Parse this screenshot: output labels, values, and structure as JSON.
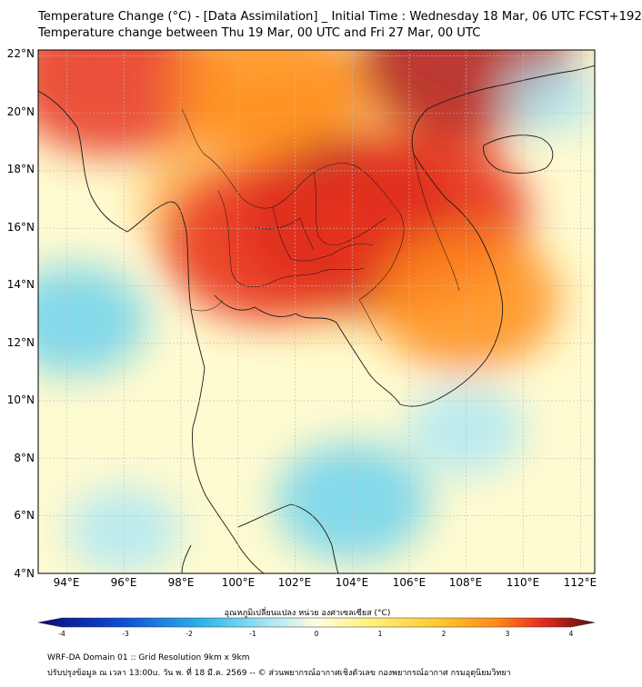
{
  "header": {
    "title_line1": "Temperature Change (°C) - [Data Assimilation] _ Initial Time : Wednesday 18 Mar, 06 UTC FCST+192",
    "title_line2": "Temperature change between Thu 19 Mar, 00 UTC and Fri 27 Mar, 00 UTC"
  },
  "map": {
    "lat_ticks": [
      "22°N",
      "20°N",
      "18°N",
      "16°N",
      "14°N",
      "12°N",
      "10°N",
      "8°N",
      "6°N",
      "4°N"
    ],
    "lon_ticks": [
      "94°E",
      "96°E",
      "98°E",
      "100°E",
      "102°E",
      "104°E",
      "106°E",
      "108°E",
      "110°E",
      "112°E"
    ],
    "extent": {
      "lon_min": 93.0,
      "lon_max": 112.5,
      "lat_min": 4.0,
      "lat_max": 22.2
    },
    "anomaly_centers": [
      {
        "lon": 104.0,
        "lat": 16.2,
        "value": 3.0
      },
      {
        "lon": 101.0,
        "lat": 15.5,
        "value": 2.6
      },
      {
        "lon": 106.5,
        "lat": 16.5,
        "value": 2.7
      },
      {
        "lon": 95.5,
        "lat": 21.3,
        "value": 2.6
      },
      {
        "lon": 108.0,
        "lat": 22.0,
        "value": 2.8
      },
      {
        "lon": 101.0,
        "lat": 21.0,
        "value": 2.3
      },
      {
        "lon": 108.0,
        "lat": 13.5,
        "value": 2.2
      },
      {
        "lon": 94.3,
        "lat": 12.8,
        "value": -1.4
      },
      {
        "lon": 104.0,
        "lat": 6.5,
        "value": -1.6
      },
      {
        "lon": 108.0,
        "lat": 9.0,
        "value": -0.9
      },
      {
        "lon": 111.0,
        "lat": 20.5,
        "value": -0.4
      },
      {
        "lon": 96.0,
        "lat": 5.5,
        "value": -0.8
      }
    ]
  },
  "colorbar": {
    "label": "อุณหภูมิเปลี่ยนแปลง หน่วย องศาเซลเซียส (°C)",
    "min": -4,
    "max": 4,
    "ticks": [
      "-4",
      "-3",
      "-2",
      "-1",
      "0",
      "1",
      "2",
      "3",
      "4"
    ]
  },
  "footer": {
    "line1": "WRF-DA Domain 01 :: Grid Resolution 9km x 9km",
    "line2": "ปรับปรุงข้อมูล ณ เวลา 13:00u. วัน พ. ที่ 18 มี.ค. 2569 -- © ส่วนพยากรณ์อากาศเชิงตัวเลข กองพยากรณ์อากาศ กรมอุตุนิยมวิทยา"
  },
  "colors": {
    "deep_red": "#b2181b",
    "red": "#e8321e",
    "orange": "#ff8c1a",
    "yellow": "#fff07a",
    "pale": "#fffde0",
    "cyan": "#aee8f5",
    "blue": "#0f4bd6",
    "navy": "#0a0a78"
  }
}
